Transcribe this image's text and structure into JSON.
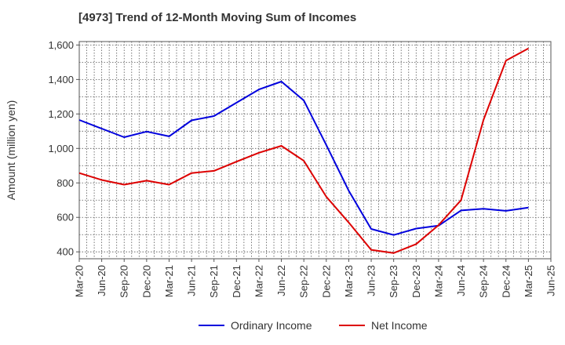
{
  "chart_data": {
    "type": "line",
    "title": "[4973]  Trend of 12-Month Moving Sum of Incomes",
    "ylabel": "Amount (million yen)",
    "xlabel": "",
    "ylim": [
      360,
      1620
    ],
    "yticks": [
      400,
      600,
      800,
      1000,
      1200,
      1400,
      1600
    ],
    "ytick_labels": [
      "400",
      "600",
      "800",
      "1,000",
      "1,200",
      "1,400",
      "1,600"
    ],
    "categories": [
      "Mar-20",
      "Jun-20",
      "Sep-20",
      "Dec-20",
      "Mar-21",
      "Jun-21",
      "Sep-21",
      "Dec-21",
      "Mar-22",
      "Jun-22",
      "Sep-22",
      "Dec-22",
      "Mar-23",
      "Jun-23",
      "Sep-23",
      "Dec-23",
      "Mar-24",
      "Jun-24",
      "Sep-24",
      "Dec-24",
      "Mar-25",
      "Jun-25"
    ],
    "series": [
      {
        "name": "Ordinary Income",
        "color": "#0000dd",
        "values": [
          1165,
          1115,
          1065,
          1098,
          1070,
          1163,
          1188,
          1265,
          1342,
          1388,
          1278,
          1020,
          755,
          533,
          498,
          535,
          552,
          640,
          650,
          638,
          657,
          null
        ]
      },
      {
        "name": "Net Income",
        "color": "#dd0000",
        "values": [
          857,
          817,
          790,
          813,
          790,
          857,
          870,
          923,
          975,
          1015,
          928,
          720,
          570,
          412,
          393,
          445,
          555,
          700,
          1165,
          1510,
          1580,
          null
        ]
      }
    ],
    "grid": true,
    "legend_position": "bottom-center"
  }
}
